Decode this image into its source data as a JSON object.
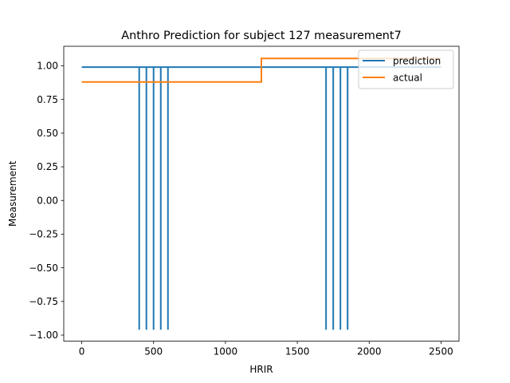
{
  "chart_data": {
    "type": "line",
    "title": "Anthro Prediction for subject 127 measurement7",
    "xlabel": "HRIR",
    "ylabel": "Measurement",
    "xlim": [
      -125,
      2625
    ],
    "ylim": [
      -1.045,
      1.145
    ],
    "x_ticks": [
      0,
      500,
      1000,
      1500,
      2000,
      2500
    ],
    "x_tick_labels": [
      "0",
      "500",
      "1000",
      "1500",
      "2000",
      "2500"
    ],
    "y_ticks": [
      1.0,
      0.75,
      0.5,
      0.25,
      0.0,
      -0.25,
      -0.5,
      -0.75,
      -1.0
    ],
    "y_tick_labels": [
      "1.00",
      "0.75",
      "0.50",
      "0.25",
      "0.00",
      "−0.25",
      "−0.50",
      "−0.75",
      "−1.00"
    ],
    "grid": false,
    "legend_position": "top-right",
    "series": [
      {
        "name": "prediction",
        "color": "#1f77b4",
        "x": [
          0,
          400,
          400,
          400,
          450,
          450,
          450,
          500,
          500,
          500,
          550,
          550,
          550,
          600,
          600,
          600,
          1700,
          1700,
          1700,
          1750,
          1750,
          1750,
          1800,
          1800,
          1800,
          1850,
          1850,
          1850,
          2500
        ],
        "y": [
          0.99,
          0.99,
          -0.96,
          0.99,
          0.99,
          -0.96,
          0.99,
          0.99,
          -0.96,
          0.99,
          0.99,
          -0.96,
          0.99,
          0.99,
          -0.96,
          0.99,
          0.99,
          -0.96,
          0.99,
          0.99,
          -0.96,
          0.99,
          0.99,
          -0.96,
          0.99,
          0.99,
          -0.96,
          0.99,
          0.99
        ]
      },
      {
        "name": "actual",
        "color": "#ff7f0e",
        "x": [
          0,
          1250,
          1250,
          2500
        ],
        "y": [
          0.88,
          0.88,
          1.055,
          1.055
        ]
      }
    ]
  }
}
